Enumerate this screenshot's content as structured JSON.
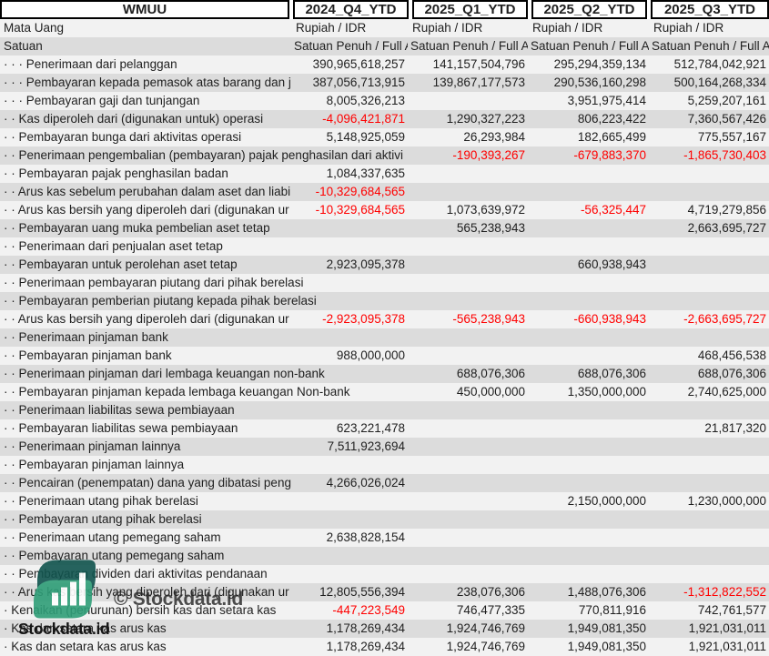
{
  "header": {
    "company": "WMUU",
    "periods": [
      "2024_Q4_YTD",
      "2025_Q1_YTD",
      "2025_Q2_YTD",
      "2025_Q3_YTD"
    ]
  },
  "meta": {
    "currency_label": "Mata Uang",
    "currency_value": "Rupiah / IDR",
    "unit_label": "Satuan",
    "unit_value": "Satuan Penuh / Full A"
  },
  "rows": [
    {
      "label": "· · · Penerimaan dari pelanggan",
      "values": [
        "390,965,618,257",
        "141,157,504,796",
        "295,294,359,134",
        "512,784,042,921"
      ]
    },
    {
      "label": "· · · Pembayaran kepada pemasok atas barang dan ja",
      "values": [
        "387,056,713,915",
        "139,867,177,573",
        "290,536,160,298",
        "500,164,268,334"
      ]
    },
    {
      "label": "· · · Pembayaran gaji dan tunjangan",
      "values": [
        "8,005,326,213",
        "",
        "3,951,975,414",
        "5,259,207,161"
      ]
    },
    {
      "label": "· · Kas diperoleh dari (digunakan untuk) operasi",
      "values": [
        "-4,096,421,871",
        "1,290,327,223",
        "806,223,422",
        "7,360,567,426"
      ]
    },
    {
      "label": "· · Pembayaran bunga dari aktivitas operasi",
      "values": [
        "5,148,925,059",
        "26,293,984",
        "182,665,499",
        "775,557,167"
      ]
    },
    {
      "label": "· · Penerimaan pengembalian (pembayaran) pajak penghasilan dari aktivi",
      "values": [
        "",
        "-190,393,267",
        "-679,883,370",
        "-1,865,730,403"
      ]
    },
    {
      "label": "· · Pembayaran pajak penghasilan badan",
      "values": [
        "1,084,337,635",
        "",
        "",
        ""
      ]
    },
    {
      "label": "· · Arus kas sebelum perubahan dalam aset dan liabi",
      "values": [
        "-10,329,684,565",
        "",
        "",
        ""
      ]
    },
    {
      "label": "· · Arus kas bersih yang diperoleh dari (digunakan ur",
      "values": [
        "-10,329,684,565",
        "1,073,639,972",
        "-56,325,447",
        "4,719,279,856"
      ]
    },
    {
      "label": "· · Pembayaran uang muka pembelian aset tetap",
      "values": [
        "",
        "565,238,943",
        "",
        "2,663,695,727"
      ]
    },
    {
      "label": "· · Penerimaan dari penjualan aset tetap",
      "values": [
        "",
        "",
        "",
        ""
      ]
    },
    {
      "label": "· · Pembayaran untuk perolehan aset tetap",
      "values": [
        "2,923,095,378",
        "",
        "660,938,943",
        ""
      ]
    },
    {
      "label": "· · Penerimaan pembayaran piutang dari pihak berelasi",
      "values": [
        "",
        "",
        "",
        ""
      ]
    },
    {
      "label": "· · Pembayaran pemberian piutang kepada pihak berelasi",
      "values": [
        "",
        "",
        "",
        ""
      ]
    },
    {
      "label": "· · Arus kas bersih yang diperoleh dari (digunakan ur",
      "values": [
        "-2,923,095,378",
        "-565,238,943",
        "-660,938,943",
        "-2,663,695,727"
      ]
    },
    {
      "label": "· · Penerimaan pinjaman bank",
      "values": [
        "",
        "",
        "",
        ""
      ]
    },
    {
      "label": "· · Pembayaran pinjaman bank",
      "values": [
        "988,000,000",
        "",
        "",
        "468,456,538"
      ]
    },
    {
      "label": "· · Penerimaan pinjaman dari lembaga keuangan non-bank",
      "values": [
        "",
        "688,076,306",
        "688,076,306",
        "688,076,306"
      ]
    },
    {
      "label": "· · Pembayaran pinjaman kepada lembaga keuangan Non-bank",
      "values": [
        "",
        "450,000,000",
        "1,350,000,000",
        "2,740,625,000"
      ]
    },
    {
      "label": "· · Penerimaan liabilitas sewa pembiayaan",
      "values": [
        "",
        "",
        "",
        ""
      ]
    },
    {
      "label": "· · Pembayaran liabilitas sewa pembiayaan",
      "values": [
        "623,221,478",
        "",
        "",
        "21,817,320"
      ]
    },
    {
      "label": "· · Penerimaan pinjaman lainnya",
      "values": [
        "7,511,923,694",
        "",
        "",
        ""
      ]
    },
    {
      "label": "· · Pembayaran pinjaman lainnya",
      "values": [
        "",
        "",
        "",
        ""
      ]
    },
    {
      "label": "· · Pencairan (penempatan) dana yang dibatasi peng",
      "values": [
        "4,266,026,024",
        "",
        "",
        ""
      ]
    },
    {
      "label": "· · Penerimaan utang pihak berelasi",
      "values": [
        "",
        "",
        "2,150,000,000",
        "1,230,000,000"
      ]
    },
    {
      "label": "· · Pembayaran utang pihak berelasi",
      "values": [
        "",
        "",
        "",
        ""
      ]
    },
    {
      "label": "· · Penerimaan utang pemegang saham",
      "values": [
        "2,638,828,154",
        "",
        "",
        ""
      ]
    },
    {
      "label": "· · Pembayaran utang pemegang saham",
      "values": [
        "",
        "",
        "",
        ""
      ]
    },
    {
      "label": "· · Pembayaran dividen dari aktivitas pendanaan",
      "values": [
        "",
        "",
        "",
        ""
      ]
    },
    {
      "label": "· · Arus kas bersih yang diperoleh dari (digunakan ur",
      "values": [
        "12,805,556,394",
        "238,076,306",
        "1,488,076,306",
        "-1,312,822,552"
      ]
    },
    {
      "label": "· Kenaikan (penurunan) bersih kas dan setara kas",
      "values": [
        "-447,223,549",
        "746,477,335",
        "770,811,916",
        "742,761,577"
      ]
    },
    {
      "label": "· Kas dan setara kas arus kas",
      "values": [
        "1,178,269,434",
        "1,924,746,769",
        "1,949,081,350",
        "1,921,031,011"
      ]
    },
    {
      "label": "· Kas dan setara kas arus kas",
      "values": [
        "1,178,269,434",
        "1,924,746,769",
        "1,949,081,350",
        "1,921,031,011"
      ]
    }
  ],
  "watermark": {
    "copyright_text": "© Stockdata.id",
    "brand_text": "Stockdata.id"
  },
  "colors": {
    "negative": "#ff0000",
    "stripe_light": "#f2f2f2",
    "stripe_dark": "#dcdcdc",
    "logo_dark_teal": "#11544e",
    "logo_light_green": "#2f9e78"
  }
}
